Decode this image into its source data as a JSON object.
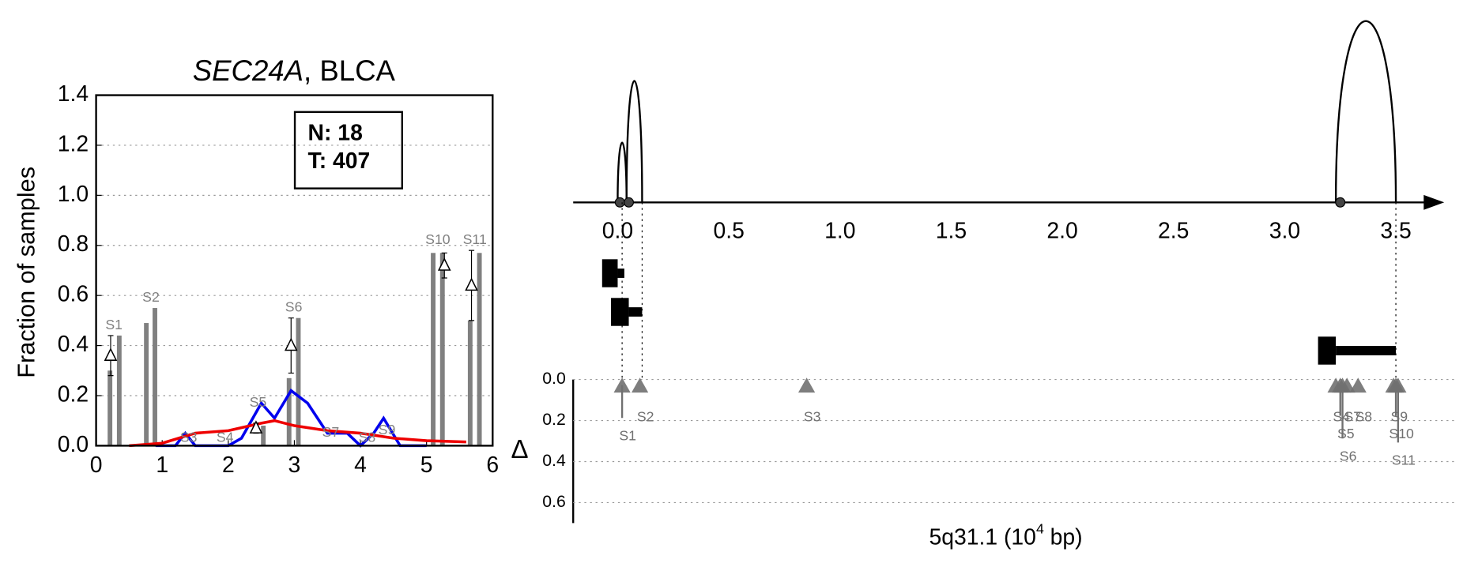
{
  "chart_data": [
    {
      "type": "bar",
      "title_italic": "SEC24A",
      "title_rest": ", BLCA",
      "ylabel": "Fraction of samples",
      "box_lines": [
        "N: 18",
        "T: 407"
      ],
      "xlim": [
        0,
        6
      ],
      "xticks": [
        0,
        1,
        2,
        3,
        4,
        5,
        6
      ],
      "ylim": [
        0,
        1.4
      ],
      "yticks": [
        {
          "value": 0,
          "label": "0.0"
        },
        {
          "value": 0.2,
          "label": "0.2"
        },
        {
          "value": 0.4,
          "label": "0.4"
        },
        {
          "value": 0.6,
          "label": "0.6"
        },
        {
          "value": 0.8,
          "label": "0.8"
        },
        {
          "value": 1.0,
          "label": "1.0"
        },
        {
          "value": 1.2,
          "label": "1.2"
        },
        {
          "value": 1.4,
          "label": "1.4"
        }
      ],
      "grid": true,
      "bar_color": "#808080",
      "bars": {
        "x": [
          0.21,
          0.35,
          0.76,
          0.89,
          2.53,
          2.92,
          3.06,
          5.1,
          5.24,
          5.66,
          5.8
        ],
        "values": [
          0.3,
          0.44,
          0.49,
          0.55,
          0.08,
          0.27,
          0.51,
          0.77,
          0.77,
          0.5,
          0.77
        ]
      },
      "points": {
        "x": [
          0.22,
          2.42,
          2.95,
          5.27,
          5.68
        ],
        "values": [
          0.36,
          0.07,
          0.4,
          0.72,
          0.64
        ],
        "errors": [
          0.08,
          0.02,
          0.11,
          0.05,
          0.14
        ]
      },
      "sample_labels": {
        "names": [
          "S1",
          "S2",
          "S3",
          "S4",
          "S5",
          "S6",
          "S7",
          "S8",
          "S9",
          "S10",
          "S11"
        ],
        "x": [
          0.27,
          0.83,
          1.4,
          1.95,
          2.45,
          2.99,
          3.55,
          4.1,
          4.4,
          5.17,
          5.73
        ],
        "y": [
          0.48,
          0.59,
          0.03,
          0.03,
          0.17,
          0.55,
          0.05,
          0.03,
          0.06,
          0.82,
          0.82
        ]
      },
      "series": [
        {
          "name": "blue",
          "color": "#0000ee",
          "x": [
            0.9,
            1.2,
            1.35,
            1.5,
            2.0,
            2.2,
            2.5,
            2.7,
            2.95,
            3.2,
            3.5,
            3.8,
            4.0,
            4.2,
            4.35,
            4.6,
            5.0
          ],
          "values": [
            0,
            0,
            0.05,
            0,
            0,
            0.03,
            0.17,
            0.11,
            0.22,
            0.17,
            0.05,
            0.05,
            0,
            0.05,
            0.11,
            0,
            0
          ]
        },
        {
          "name": "red",
          "color": "#ee0000",
          "x": [
            0.5,
            1.0,
            1.5,
            2.0,
            2.5,
            2.7,
            3.0,
            3.5,
            4.0,
            4.5,
            5.0,
            5.6
          ],
          "values": [
            0,
            0.01,
            0.05,
            0.06,
            0.09,
            0.1,
            0.08,
            0.06,
            0.05,
            0.03,
            0.02,
            0.015
          ]
        }
      ]
    },
    {
      "type": "track",
      "xlabel_parts": [
        "5q31.1 (10",
        "4",
        " bp)"
      ],
      "ylabel": "Δ",
      "xlim": [
        -0.2,
        3.6
      ],
      "xticks": [
        {
          "value": 0,
          "label": "0.0"
        },
        {
          "value": 0.5,
          "label": "0.5"
        },
        {
          "value": 1.0,
          "label": "1.0"
        },
        {
          "value": 1.5,
          "label": "1.5"
        },
        {
          "value": 2.0,
          "label": "2.0"
        },
        {
          "value": 2.5,
          "label": "2.5"
        },
        {
          "value": 3.0,
          "label": "3.0"
        },
        {
          "value": 3.5,
          "label": "3.5"
        }
      ],
      "ylim": [
        0,
        0.7
      ],
      "yticks": [
        {
          "value": 0,
          "label": "0.0"
        },
        {
          "value": 0.2,
          "label": "0.2"
        },
        {
          "value": 0.4,
          "label": "0.4"
        },
        {
          "value": 0.6,
          "label": "0.6"
        }
      ],
      "arcs": {
        "start": [
          0.0,
          0.04,
          3.23
        ],
        "end": [
          0.04,
          0.11,
          3.5
        ],
        "height": [
          0.33,
          0.67,
          1.0
        ]
      },
      "dots": [
        0.01,
        0.05,
        3.25
      ],
      "genes": {
        "box_start": [
          -0.07,
          -0.03,
          3.15
        ],
        "box_end": [
          0.0,
          0.05,
          3.23
        ],
        "tail_end": [
          0.03,
          0.11,
          3.5
        ]
      },
      "guides": [
        0.02,
        0.11,
        3.5
      ],
      "samples": {
        "names": [
          "S1",
          "S2",
          "S3",
          "S4",
          "S5",
          "S6",
          "S7",
          "S8",
          "S9",
          "S10",
          "S11"
        ],
        "x": [
          0.02,
          0.1,
          0.85,
          3.23,
          3.25,
          3.26,
          3.28,
          3.33,
          3.49,
          3.5,
          3.51
        ],
        "delta": [
          0.16,
          0,
          0,
          0,
          0.15,
          0.26,
          0,
          0,
          0,
          0.15,
          0.28
        ]
      },
      "marker_color": "#707070"
    }
  ]
}
